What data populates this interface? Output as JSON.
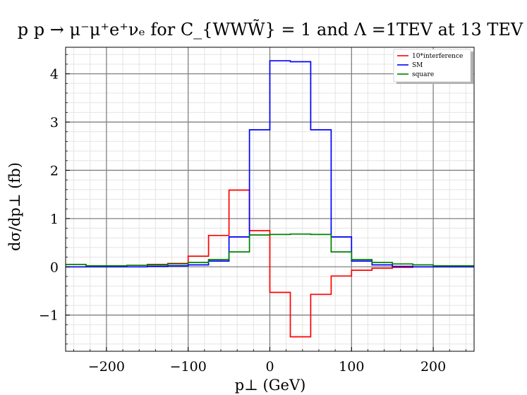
{
  "chart_data": {
    "type": "line",
    "drawstyle": "steps",
    "title": "p p → μ⁻μ⁺e⁺νₑ for C_{WWW̃} = 1 and Λ =1TEV at 13 TEV",
    "xlabel": "p⊥ (GeV)",
    "ylabel": "dσ/dp⊥ (fb)",
    "xlim": [
      -250,
      250
    ],
    "ylim": [
      -1.75,
      4.55
    ],
    "xticks": [
      -200,
      -100,
      0,
      100,
      200
    ],
    "xtick_labels": [
      "−200",
      "−100",
      "0",
      "100",
      "200"
    ],
    "yticks": [
      -1,
      0,
      1,
      2,
      3,
      4
    ],
    "ytick_labels": [
      "−1",
      "0",
      "1",
      "2",
      "3",
      "4"
    ],
    "grid": true,
    "minor_grid": true,
    "legend_position": "top-right",
    "bin_edges": [
      -250,
      -225,
      -200,
      -175,
      -150,
      -125,
      -100,
      -75,
      -50,
      -25,
      0,
      25,
      50,
      75,
      100,
      125,
      150,
      175,
      200,
      225,
      250
    ],
    "series": [
      {
        "name": "10*interference",
        "color": "#ff0000",
        "values": [
          0.0,
          0.01,
          0.02,
          0.03,
          0.05,
          0.07,
          0.22,
          0.65,
          1.59,
          0.75,
          -0.53,
          -1.45,
          -0.57,
          -0.19,
          -0.07,
          -0.03,
          -0.01,
          0.0,
          0.0,
          0.0
        ]
      },
      {
        "name": "SM",
        "color": "#0000ff",
        "values": [
          0.0,
          0.0,
          0.0,
          0.0,
          0.01,
          0.02,
          0.04,
          0.12,
          0.62,
          2.84,
          4.27,
          4.25,
          2.84,
          0.62,
          0.12,
          0.04,
          0.01,
          0.0,
          0.0,
          0.0
        ]
      },
      {
        "name": "square",
        "color": "#008000",
        "values": [
          0.05,
          0.02,
          0.02,
          0.03,
          0.04,
          0.06,
          0.09,
          0.15,
          0.31,
          0.66,
          0.67,
          0.68,
          0.67,
          0.31,
          0.15,
          0.09,
          0.06,
          0.04,
          0.02,
          0.02
        ]
      }
    ]
  }
}
